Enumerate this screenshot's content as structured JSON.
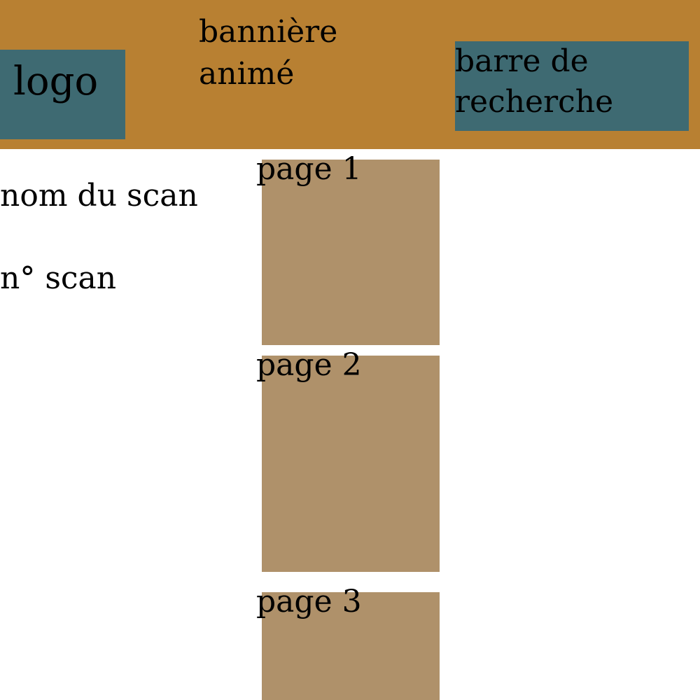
{
  "header": {
    "logo_label": "logo",
    "banner": {
      "line1": "bannière",
      "line2": "animé"
    },
    "search": {
      "line1": "barre de",
      "line2": "recherche"
    }
  },
  "scan_info": {
    "name_label": "nom du scan",
    "number_label": "n° scan"
  },
  "pages": [
    {
      "label": "page 1"
    },
    {
      "label": "page 2"
    },
    {
      "label": "page 3"
    }
  ],
  "colors": {
    "header_bg": "#b88032",
    "placeholder_box": "#3e6a72",
    "page_block": "#af916a",
    "page_bg": "#ffffff",
    "text": "#000000"
  }
}
